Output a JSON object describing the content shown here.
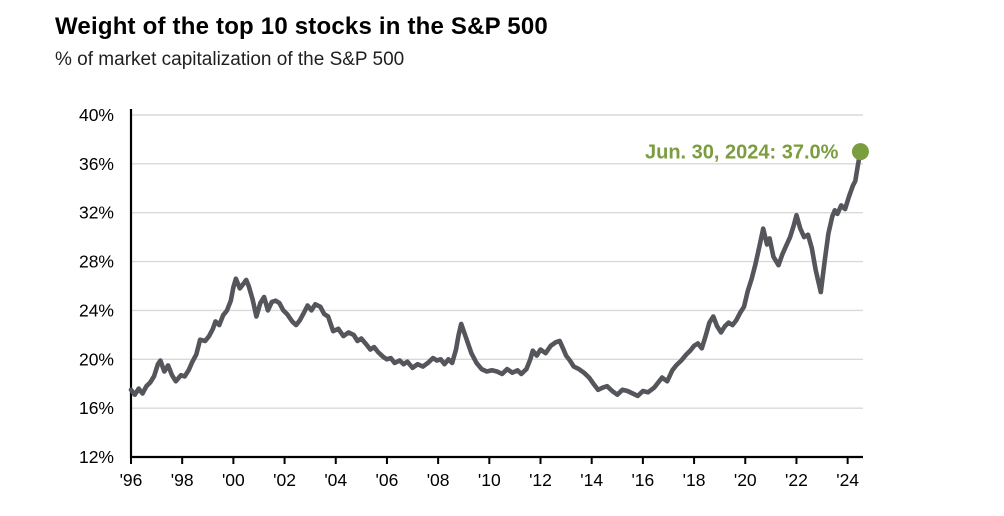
{
  "chart": {
    "title": "Weight of the top 10 stocks in the S&P 500",
    "subtitle": "% of market capitalization of the S&P 500"
  },
  "chart_data": {
    "type": "line",
    "title": "Weight of the top 10 stocks in the S&P 500",
    "subtitle": "% of market capitalization of the S&P 500",
    "xlabel": "",
    "ylabel": "% of market capitalization of the S&P 500",
    "xlim": [
      1996,
      2024.6
    ],
    "ylim": [
      12,
      40
    ],
    "grid": "horizontal",
    "legend": "none",
    "y_ticks": [
      12,
      16,
      20,
      24,
      28,
      32,
      36,
      40
    ],
    "y_tick_labels": [
      "12%",
      "16%",
      "20%",
      "24%",
      "28%",
      "32%",
      "36%",
      "40%"
    ],
    "x_ticks": [
      1996,
      1998,
      2000,
      2002,
      2004,
      2006,
      2008,
      2010,
      2012,
      2014,
      2016,
      2018,
      2020,
      2022,
      2024
    ],
    "x_tick_labels": [
      "'96",
      "'98",
      "'00",
      "'02",
      "'04",
      "'06",
      "'08",
      "'10",
      "'12",
      "'14",
      "'16",
      "'18",
      "'20",
      "'22",
      "'24"
    ],
    "annotation": {
      "label": "Jun. 30, 2024: 37.0%",
      "x": 2024.5,
      "y": 37.0
    },
    "end_marker": {
      "x": 2024.5,
      "y": 37.0
    },
    "colors": {
      "line": "#54565B",
      "accent_green": "#7C9D3F",
      "gridline": "#D9D9D9",
      "axis": "#000000",
      "text": "#000000"
    },
    "series": [
      {
        "name": "Weight of top 10 stocks in S&P 500 (%)",
        "points": [
          [
            1996.0,
            17.5
          ],
          [
            1996.15,
            17.1
          ],
          [
            1996.3,
            17.6
          ],
          [
            1996.45,
            17.2
          ],
          [
            1996.6,
            17.8
          ],
          [
            1996.75,
            18.1
          ],
          [
            1996.9,
            18.6
          ],
          [
            1997.05,
            19.6
          ],
          [
            1997.15,
            19.9
          ],
          [
            1997.3,
            19.0
          ],
          [
            1997.45,
            19.5
          ],
          [
            1997.6,
            18.7
          ],
          [
            1997.75,
            18.2
          ],
          [
            1997.95,
            18.7
          ],
          [
            1998.1,
            18.6
          ],
          [
            1998.25,
            19.1
          ],
          [
            1998.4,
            19.8
          ],
          [
            1998.55,
            20.4
          ],
          [
            1998.7,
            21.6
          ],
          [
            1998.9,
            21.5
          ],
          [
            1999.05,
            21.9
          ],
          [
            1999.2,
            22.5
          ],
          [
            1999.3,
            23.1
          ],
          [
            1999.45,
            22.8
          ],
          [
            1999.6,
            23.6
          ],
          [
            1999.75,
            24.0
          ],
          [
            1999.9,
            24.8
          ],
          [
            2000.0,
            25.9
          ],
          [
            2000.1,
            26.6
          ],
          [
            2000.25,
            25.8
          ],
          [
            2000.4,
            26.2
          ],
          [
            2000.5,
            26.5
          ],
          [
            2000.6,
            26.0
          ],
          [
            2000.75,
            24.9
          ],
          [
            2000.9,
            23.5
          ],
          [
            2001.05,
            24.6
          ],
          [
            2001.2,
            25.1
          ],
          [
            2001.35,
            24.0
          ],
          [
            2001.5,
            24.7
          ],
          [
            2001.65,
            24.8
          ],
          [
            2001.8,
            24.6
          ],
          [
            2001.95,
            24.0
          ],
          [
            2002.1,
            23.7
          ],
          [
            2002.3,
            23.1
          ],
          [
            2002.45,
            22.8
          ],
          [
            2002.6,
            23.2
          ],
          [
            2002.75,
            23.8
          ],
          [
            2002.9,
            24.4
          ],
          [
            2003.05,
            24.0
          ],
          [
            2003.2,
            24.5
          ],
          [
            2003.4,
            24.3
          ],
          [
            2003.55,
            23.7
          ],
          [
            2003.7,
            23.5
          ],
          [
            2003.9,
            22.3
          ],
          [
            2004.1,
            22.5
          ],
          [
            2004.3,
            21.9
          ],
          [
            2004.5,
            22.2
          ],
          [
            2004.7,
            22.0
          ],
          [
            2004.85,
            21.5
          ],
          [
            2005.0,
            21.7
          ],
          [
            2005.2,
            21.2
          ],
          [
            2005.35,
            20.8
          ],
          [
            2005.5,
            21.0
          ],
          [
            2005.65,
            20.6
          ],
          [
            2005.85,
            20.2
          ],
          [
            2006.0,
            20.0
          ],
          [
            2006.15,
            20.1
          ],
          [
            2006.3,
            19.7
          ],
          [
            2006.5,
            19.9
          ],
          [
            2006.65,
            19.6
          ],
          [
            2006.8,
            19.8
          ],
          [
            2007.0,
            19.3
          ],
          [
            2007.2,
            19.6
          ],
          [
            2007.4,
            19.4
          ],
          [
            2007.6,
            19.7
          ],
          [
            2007.8,
            20.1
          ],
          [
            2007.95,
            19.9
          ],
          [
            2008.1,
            20.0
          ],
          [
            2008.25,
            19.6
          ],
          [
            2008.4,
            20.0
          ],
          [
            2008.55,
            19.7
          ],
          [
            2008.7,
            20.8
          ],
          [
            2008.8,
            22.0
          ],
          [
            2008.9,
            22.9
          ],
          [
            2009.1,
            21.7
          ],
          [
            2009.3,
            20.5
          ],
          [
            2009.5,
            19.7
          ],
          [
            2009.7,
            19.2
          ],
          [
            2009.9,
            19.0
          ],
          [
            2010.1,
            19.1
          ],
          [
            2010.3,
            19.0
          ],
          [
            2010.5,
            18.8
          ],
          [
            2010.7,
            19.2
          ],
          [
            2010.9,
            18.9
          ],
          [
            2011.1,
            19.1
          ],
          [
            2011.25,
            18.8
          ],
          [
            2011.45,
            19.2
          ],
          [
            2011.6,
            20.0
          ],
          [
            2011.7,
            20.7
          ],
          [
            2011.85,
            20.3
          ],
          [
            2012.0,
            20.8
          ],
          [
            2012.2,
            20.5
          ],
          [
            2012.4,
            21.1
          ],
          [
            2012.6,
            21.4
          ],
          [
            2012.75,
            21.5
          ],
          [
            2012.9,
            20.8
          ],
          [
            2013.0,
            20.3
          ],
          [
            2013.15,
            19.9
          ],
          [
            2013.3,
            19.4
          ],
          [
            2013.5,
            19.2
          ],
          [
            2013.7,
            18.9
          ],
          [
            2013.9,
            18.5
          ],
          [
            2014.1,
            17.9
          ],
          [
            2014.25,
            17.5
          ],
          [
            2014.45,
            17.7
          ],
          [
            2014.6,
            17.8
          ],
          [
            2014.8,
            17.4
          ],
          [
            2015.0,
            17.1
          ],
          [
            2015.2,
            17.5
          ],
          [
            2015.4,
            17.4
          ],
          [
            2015.6,
            17.2
          ],
          [
            2015.8,
            17.0
          ],
          [
            2016.0,
            17.4
          ],
          [
            2016.2,
            17.3
          ],
          [
            2016.45,
            17.7
          ],
          [
            2016.6,
            18.1
          ],
          [
            2016.75,
            18.5
          ],
          [
            2016.95,
            18.2
          ],
          [
            2017.15,
            19.1
          ],
          [
            2017.3,
            19.5
          ],
          [
            2017.5,
            19.9
          ],
          [
            2017.7,
            20.4
          ],
          [
            2017.85,
            20.7
          ],
          [
            2018.0,
            21.1
          ],
          [
            2018.15,
            21.3
          ],
          [
            2018.3,
            20.9
          ],
          [
            2018.45,
            21.9
          ],
          [
            2018.6,
            23.0
          ],
          [
            2018.75,
            23.5
          ],
          [
            2018.9,
            22.7
          ],
          [
            2019.05,
            22.2
          ],
          [
            2019.2,
            22.7
          ],
          [
            2019.35,
            23.0
          ],
          [
            2019.5,
            22.8
          ],
          [
            2019.65,
            23.2
          ],
          [
            2019.8,
            23.8
          ],
          [
            2019.95,
            24.3
          ],
          [
            2020.1,
            25.6
          ],
          [
            2020.25,
            26.6
          ],
          [
            2020.4,
            27.8
          ],
          [
            2020.55,
            29.2
          ],
          [
            2020.7,
            30.7
          ],
          [
            2020.85,
            29.4
          ],
          [
            2020.95,
            29.9
          ],
          [
            2021.1,
            28.4
          ],
          [
            2021.3,
            27.7
          ],
          [
            2021.45,
            28.6
          ],
          [
            2021.6,
            29.3
          ],
          [
            2021.75,
            30.0
          ],
          [
            2021.9,
            31.0
          ],
          [
            2022.0,
            31.8
          ],
          [
            2022.15,
            30.7
          ],
          [
            2022.3,
            30.0
          ],
          [
            2022.45,
            30.2
          ],
          [
            2022.6,
            29.1
          ],
          [
            2022.75,
            27.3
          ],
          [
            2022.95,
            25.5
          ],
          [
            2023.1,
            28.0
          ],
          [
            2023.25,
            30.3
          ],
          [
            2023.4,
            31.7
          ],
          [
            2023.5,
            32.2
          ],
          [
            2023.6,
            31.9
          ],
          [
            2023.75,
            32.6
          ],
          [
            2023.9,
            32.3
          ],
          [
            2024.05,
            33.3
          ],
          [
            2024.2,
            34.2
          ],
          [
            2024.3,
            34.6
          ],
          [
            2024.4,
            35.9
          ],
          [
            2024.5,
            37.0
          ]
        ]
      }
    ]
  }
}
